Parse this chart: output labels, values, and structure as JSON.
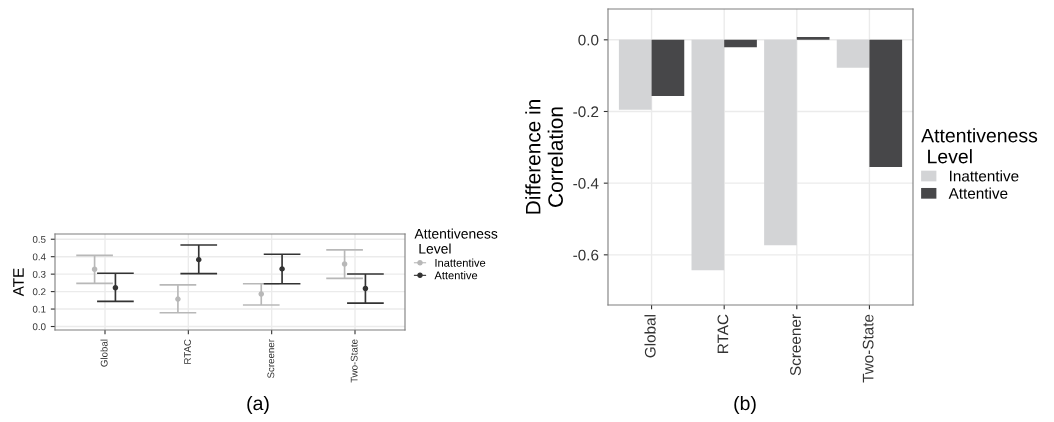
{
  "chart_data": [
    {
      "type": "scatter",
      "categories": [
        "Global",
        "RTAC",
        "Screener",
        "Two-State"
      ],
      "ylabel": "ATE",
      "ylim": [
        -0.02,
        0.53
      ],
      "yticks": [
        {
          "value": 0.0,
          "label": "0.0"
        },
        0.1,
        0.2,
        0.3,
        0.4,
        0.5
      ],
      "grid": true,
      "legend": "right",
      "legend_title": "Attentiveness\n Level",
      "marker": "circle",
      "annotations": [
        "(a)"
      ],
      "series": [
        {
          "name": "Inattentive",
          "color": "#b8b8b8",
          "values": [
            0.328,
            0.157,
            0.186,
            0.358
          ],
          "errors": [
            [
              0.247,
              0.408
            ],
            [
              0.079,
              0.239
            ],
            [
              0.123,
              0.245
            ],
            [
              0.276,
              0.439
            ]
          ]
        },
        {
          "name": "Attentive",
          "color": "#333333",
          "values": [
            0.222,
            0.383,
            0.33,
            0.218
          ],
          "errors": [
            [
              0.144,
              0.305
            ],
            [
              0.303,
              0.467
            ],
            [
              0.245,
              0.414
            ],
            [
              0.134,
              0.301
            ]
          ]
        }
      ]
    },
    {
      "type": "bar",
      "categories": [
        "Global",
        "RTAC",
        "Screener",
        "Two-State"
      ],
      "ylabel": "Difference in\nCorrelation",
      "ylim": [
        -0.74,
        0.086
      ],
      "yticks": [
        {
          "value": -0.6,
          "label": "-0.6"
        },
        {
          "value": -0.4,
          "label": "-0.4"
        },
        {
          "value": -0.2,
          "label": "-0.2"
        },
        {
          "value": 0.0,
          "label": "0.0"
        }
      ],
      "grid": true,
      "legend": "right",
      "legend_title": "Attentiveness\n Level",
      "annotations": [
        "(b)"
      ],
      "series": [
        {
          "name": "Inattentive",
          "color": "#d3d4d6",
          "values": [
            -0.195,
            -0.643,
            -0.573,
            -0.078
          ]
        },
        {
          "name": "Attentive",
          "color": "#474749",
          "values": [
            -0.157,
            -0.021,
            0.008,
            -0.355
          ]
        }
      ]
    }
  ]
}
